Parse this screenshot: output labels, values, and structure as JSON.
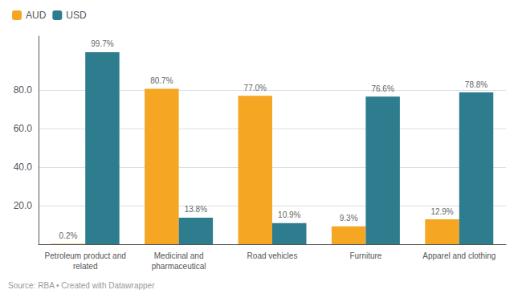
{
  "chart_data": {
    "type": "bar",
    "categories": [
      "Petroleum product and\nrelated",
      "Medicinal and\npharmaceutical",
      "Road vehicles",
      "Furniture",
      "Apparel and clothing"
    ],
    "series": [
      {
        "name": "AUD",
        "color": "#F5A623",
        "values": [
          0.2,
          80.7,
          77.0,
          9.3,
          12.9
        ],
        "value_labels": [
          "0.2%",
          "80.7%",
          "77.0%",
          "9.3%",
          "12.9%"
        ]
      },
      {
        "name": "USD",
        "color": "#2E7D8E",
        "values": [
          99.7,
          13.8,
          10.9,
          76.6,
          78.8
        ],
        "value_labels": [
          "99.7%",
          "13.8%",
          "10.9%",
          "76.6%",
          "78.8%"
        ]
      }
    ],
    "ylim": [
      0,
      108
    ],
    "yticks": [
      {
        "value": 20,
        "label": "20.0"
      },
      {
        "value": 40,
        "label": "40.0"
      },
      {
        "value": 60,
        "label": "60.0"
      },
      {
        "value": 80,
        "label": "80.0"
      }
    ],
    "grid": true,
    "legend": "upper left",
    "data_labels": true,
    "annotations": [
      "Source: RBA • Created with Datawrapper"
    ]
  }
}
